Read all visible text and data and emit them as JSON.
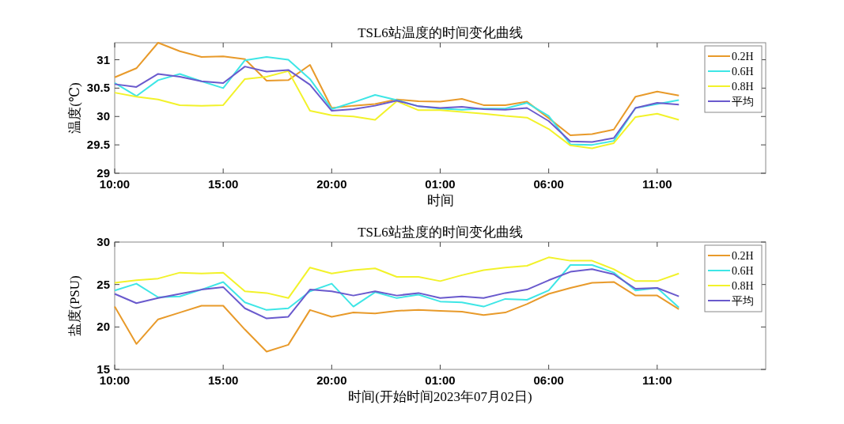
{
  "chart_data": [
    {
      "type": "line",
      "title": "TSL6站温度的时间变化曲线",
      "xlabel": "时间",
      "ylabel": "温度(℃)",
      "x": [
        "2023-07-02T10:00",
        "2023-07-02T11:00",
        "2023-07-02T12:00",
        "2023-07-02T13:00",
        "2023-07-02T14:00",
        "2023-07-02T15:00",
        "2023-07-02T16:00",
        "2023-07-02T17:00",
        "2023-07-02T18:00",
        "2023-07-02T19:00",
        "2023-07-02T20:00",
        "2023-07-02T21:00",
        "2023-07-02T22:00",
        "2023-07-02T23:00",
        "2023-07-03T00:00",
        "2023-07-03T01:00",
        "2023-07-03T02:00",
        "2023-07-03T03:00",
        "2023-07-03T04:00",
        "2023-07-03T05:00",
        "2023-07-03T06:00",
        "2023-07-03T07:00",
        "2023-07-03T08:00",
        "2023-07-03T09:00",
        "2023-07-03T10:00",
        "2023-07-03T11:00",
        "2023-07-03T12:00"
      ],
      "xlim": [
        "2023-07-02T10:00",
        "2023-07-03T16:00"
      ],
      "xticks": [
        {
          "value": "2023-07-02T10:00",
          "label": "10:00"
        },
        {
          "value": "2023-07-02T15:00",
          "label": "15:00"
        },
        {
          "value": "2023-07-02T20:00",
          "label": "20:00"
        },
        {
          "value": "2023-07-03T01:00",
          "label": "01:00"
        },
        {
          "value": "2023-07-03T06:00",
          "label": "06:00"
        },
        {
          "value": "2023-07-03T11:00",
          "label": "11:00"
        }
      ],
      "ylim": [
        29,
        31.3
      ],
      "yticks": [
        29,
        29.5,
        30,
        30.5,
        31
      ],
      "legend": "top right",
      "grid": false,
      "series": [
        {
          "name": "0.2H",
          "color": "#e89a2a",
          "values": [
            30.69,
            30.85,
            31.3,
            31.15,
            31.05,
            31.06,
            31.01,
            30.63,
            30.64,
            30.91,
            30.15,
            30.19,
            30.22,
            30.3,
            30.27,
            30.26,
            30.31,
            30.2,
            30.2,
            30.26,
            29.97,
            29.67,
            29.69,
            29.77,
            30.35,
            30.44,
            30.37
          ]
        },
        {
          "name": "0.6H",
          "color": "#3ee6e6",
          "values": [
            30.59,
            30.36,
            30.64,
            30.75,
            30.62,
            30.5,
            30.99,
            31.05,
            31.0,
            30.66,
            30.13,
            30.25,
            30.38,
            30.29,
            30.18,
            30.14,
            30.12,
            30.14,
            30.14,
            30.24,
            30.01,
            29.51,
            29.5,
            29.57,
            30.15,
            30.22,
            30.29
          ]
        },
        {
          "name": "0.8H",
          "color": "#f2f22a",
          "values": [
            30.42,
            30.35,
            30.3,
            30.2,
            30.19,
            30.2,
            30.66,
            30.7,
            30.8,
            30.1,
            30.02,
            30.0,
            29.94,
            30.27,
            30.11,
            30.11,
            30.08,
            30.05,
            30.01,
            29.98,
            29.78,
            29.49,
            29.44,
            29.53,
            29.99,
            30.05,
            29.94
          ]
        },
        {
          "name": "平均",
          "color": "#6a5acd",
          "values": [
            30.57,
            30.52,
            30.75,
            30.7,
            30.62,
            30.59,
            30.88,
            30.79,
            30.82,
            30.56,
            30.1,
            30.13,
            30.19,
            30.28,
            30.18,
            30.15,
            30.17,
            30.13,
            30.12,
            30.15,
            29.92,
            29.56,
            29.55,
            29.62,
            30.15,
            30.24,
            30.21
          ]
        }
      ]
    },
    {
      "type": "line",
      "title": "TSL6站盐度的时间变化曲线",
      "xlabel": "时间(开始时间2023年07月02日)",
      "ylabel": "盐度(PSU)",
      "x": [
        "2023-07-02T10:00",
        "2023-07-02T11:00",
        "2023-07-02T12:00",
        "2023-07-02T13:00",
        "2023-07-02T14:00",
        "2023-07-02T15:00",
        "2023-07-02T16:00",
        "2023-07-02T17:00",
        "2023-07-02T18:00",
        "2023-07-02T19:00",
        "2023-07-02T20:00",
        "2023-07-02T21:00",
        "2023-07-02T22:00",
        "2023-07-02T23:00",
        "2023-07-03T00:00",
        "2023-07-03T01:00",
        "2023-07-03T02:00",
        "2023-07-03T03:00",
        "2023-07-03T04:00",
        "2023-07-03T05:00",
        "2023-07-03T06:00",
        "2023-07-03T07:00",
        "2023-07-03T08:00",
        "2023-07-03T09:00",
        "2023-07-03T10:00",
        "2023-07-03T11:00",
        "2023-07-03T12:00"
      ],
      "xlim": [
        "2023-07-02T10:00",
        "2023-07-03T16:00"
      ],
      "xticks": [
        {
          "value": "2023-07-02T10:00",
          "label": "10:00"
        },
        {
          "value": "2023-07-02T15:00",
          "label": "15:00"
        },
        {
          "value": "2023-07-02T20:00",
          "label": "20:00"
        },
        {
          "value": "2023-07-03T01:00",
          "label": "01:00"
        },
        {
          "value": "2023-07-03T06:00",
          "label": "06:00"
        },
        {
          "value": "2023-07-03T11:00",
          "label": "11:00"
        }
      ],
      "ylim": [
        15,
        30
      ],
      "yticks": [
        15,
        20,
        25,
        30
      ],
      "legend": "top right",
      "grid": false,
      "series": [
        {
          "name": "0.2H",
          "color": "#e89a2a",
          "values": [
            22.4,
            18.0,
            20.9,
            21.7,
            22.5,
            22.5,
            19.7,
            17.1,
            17.9,
            22.0,
            21.2,
            21.7,
            21.6,
            21.9,
            22.0,
            21.9,
            21.8,
            21.4,
            21.7,
            22.7,
            23.9,
            24.6,
            25.2,
            25.3,
            23.7,
            23.7,
            22.1
          ]
        },
        {
          "name": "0.6H",
          "color": "#3ee6e6",
          "values": [
            24.3,
            25.1,
            23.5,
            23.6,
            24.4,
            25.3,
            22.9,
            22.0,
            22.2,
            24.2,
            25.1,
            22.4,
            24.1,
            23.4,
            23.8,
            23.0,
            22.9,
            22.4,
            23.3,
            23.2,
            24.3,
            27.3,
            27.3,
            26.4,
            24.3,
            24.6,
            22.3
          ]
        },
        {
          "name": "0.8H",
          "color": "#f2f22a",
          "values": [
            25.2,
            25.5,
            25.7,
            26.4,
            26.3,
            26.4,
            24.2,
            24.0,
            23.4,
            27.0,
            26.3,
            26.7,
            26.9,
            25.9,
            25.9,
            25.4,
            26.1,
            26.7,
            27.0,
            27.2,
            28.2,
            27.8,
            27.8,
            26.8,
            25.4,
            25.4,
            26.3
          ]
        },
        {
          "name": "平均",
          "color": "#6a5acd",
          "values": [
            23.9,
            22.8,
            23.4,
            23.9,
            24.4,
            24.7,
            22.2,
            21.0,
            21.2,
            24.4,
            24.2,
            23.7,
            24.2,
            23.7,
            24.0,
            23.4,
            23.6,
            23.4,
            24.0,
            24.4,
            25.5,
            26.5,
            26.8,
            26.2,
            24.5,
            24.6,
            23.6
          ]
        }
      ]
    }
  ]
}
